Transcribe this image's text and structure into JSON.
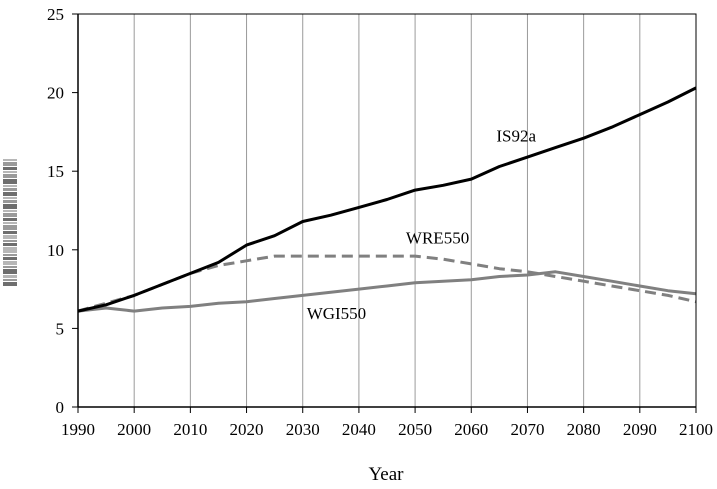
{
  "chart_data": {
    "type": "line",
    "title": "",
    "xlabel": "Year",
    "ylabel": "",
    "xlim": [
      1990,
      2100
    ],
    "ylim": [
      0,
      25
    ],
    "x_ticks": [
      1990,
      2000,
      2010,
      2020,
      2030,
      2040,
      2050,
      2060,
      2070,
      2080,
      2090,
      2100
    ],
    "y_ticks": [
      0,
      5,
      10,
      15,
      20,
      25
    ],
    "grid": "vertical",
    "legend": "none (inline labels)",
    "series": [
      {
        "name": "IS92a",
        "color": "#000000",
        "dash": "solid",
        "x": [
          1990,
          1995,
          2000,
          2005,
          2010,
          2015,
          2020,
          2025,
          2030,
          2035,
          2040,
          2045,
          2050,
          2055,
          2060,
          2065,
          2070,
          2075,
          2080,
          2085,
          2090,
          2095,
          2100
        ],
        "y": [
          6.1,
          6.5,
          7.1,
          7.8,
          8.5,
          9.2,
          10.3,
          10.9,
          11.8,
          12.2,
          12.7,
          13.2,
          13.8,
          14.1,
          14.5,
          15.3,
          15.9,
          16.5,
          17.1,
          17.8,
          18.6,
          19.4,
          20.3
        ]
      },
      {
        "name": "WRE550",
        "color": "#808080",
        "dash": "dashed",
        "x": [
          1990,
          1995,
          2000,
          2005,
          2010,
          2015,
          2020,
          2025,
          2030,
          2035,
          2040,
          2045,
          2050,
          2055,
          2060,
          2065,
          2070,
          2075,
          2080,
          2085,
          2090,
          2095,
          2100
        ],
        "y": [
          6.1,
          6.6,
          7.1,
          7.8,
          8.5,
          9.0,
          9.3,
          9.6,
          9.6,
          9.6,
          9.6,
          9.6,
          9.6,
          9.4,
          9.1,
          8.8,
          8.6,
          8.3,
          8.0,
          7.7,
          7.4,
          7.1,
          6.7
        ]
      },
      {
        "name": "WGI550",
        "color": "#808080",
        "dash": "solid",
        "x": [
          1990,
          1995,
          2000,
          2005,
          2010,
          2015,
          2020,
          2025,
          2030,
          2035,
          2040,
          2045,
          2050,
          2055,
          2060,
          2065,
          2070,
          2075,
          2080,
          2085,
          2090,
          2095,
          2100
        ],
        "y": [
          6.1,
          6.3,
          6.1,
          6.3,
          6.4,
          6.6,
          6.7,
          6.9,
          7.1,
          7.3,
          7.5,
          7.7,
          7.9,
          8.0,
          8.1,
          8.3,
          8.4,
          8.6,
          8.3,
          8.0,
          7.7,
          7.4,
          7.2
        ]
      }
    ],
    "annotations": [
      {
        "text": "IS92a",
        "series": "IS92a",
        "x": 2068,
        "y": 16.9
      },
      {
        "text": "WRE550",
        "series": "WRE550",
        "x": 2054,
        "y": 10.4
      },
      {
        "text": "WGI550",
        "series": "WGI550",
        "x": 2036,
        "y": 5.6
      }
    ]
  }
}
